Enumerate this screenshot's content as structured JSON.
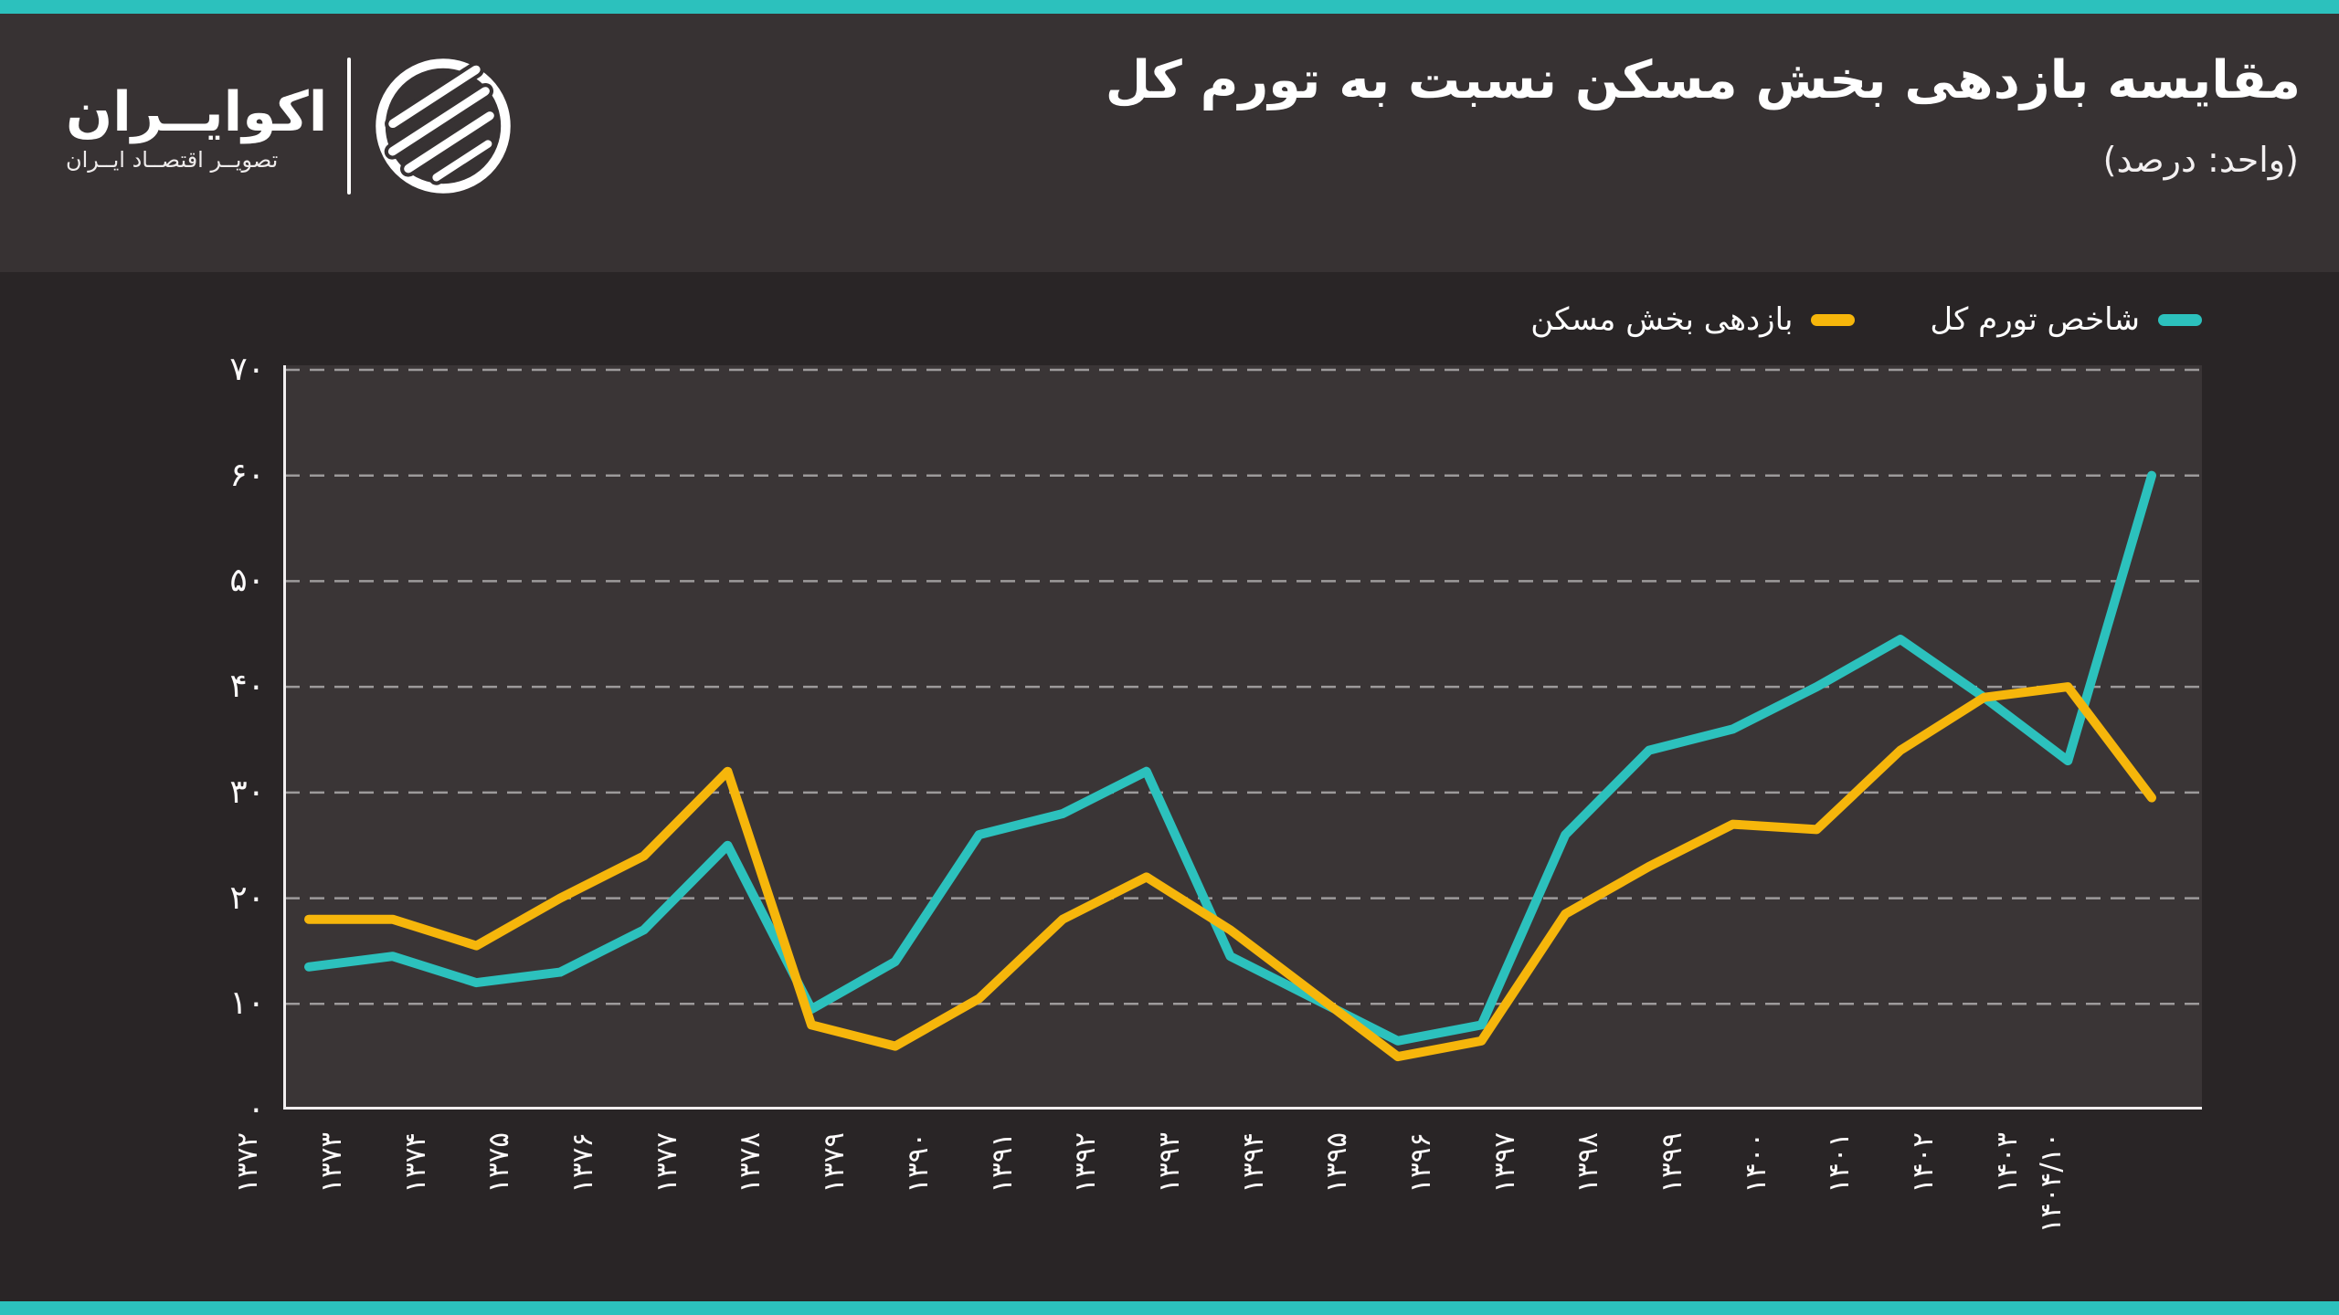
{
  "page": {
    "accent_color": "#2CC1BD",
    "background": "#292526",
    "header_background": "#373233",
    "plot_background": "#3A3536"
  },
  "header": {
    "title": "مقایسه بازدهی بخش مسکن نسبت به تورم کل",
    "subtitle": "(واحد: درصد)",
    "logo": {
      "name": "اکوایــران",
      "tagline": "تصویــر اقتصــاد ایــران",
      "emblem": "ecoiran-striped-circle-logo"
    }
  },
  "chart_data": {
    "type": "line",
    "title": "مقایسه بازدهی بخش مسکن نسبت به تورم کل",
    "unit_label": "(واحد: درصد)",
    "legend_position": "top-right",
    "grid": "horizontal-dashed",
    "ylim": [
      0,
      70
    ],
    "y_ticks": [
      {
        "label": "۷۰",
        "value": 70
      },
      {
        "label": "۶۰",
        "value": 60
      },
      {
        "label": "۵۰",
        "value": 50
      },
      {
        "label": "۴۰",
        "value": 40
      },
      {
        "label": "۳۰",
        "value": 30
      },
      {
        "label": "۲۰",
        "value": 20
      },
      {
        "label": "۱۰",
        "value": 10
      },
      {
        "label": "۰",
        "value": 0
      }
    ],
    "x_labels": [
      "۱۳۷۲",
      "۱۳۷۳",
      "۱۳۷۴",
      "۱۳۷۵",
      "۱۳۷۶",
      "۱۳۷۷",
      "۱۳۷۸",
      "۱۳۷۹",
      "۱۳۹۰",
      "۱۳۹۱",
      "۱۳۹۲",
      "۱۳۹۳",
      "۱۳۹۴",
      "۱۳۹۵",
      "۱۳۹۶",
      "۱۳۹۷",
      "۱۳۹۸",
      "۱۳۹۹",
      "۱۴۰۰",
      "۱۴۰۱",
      "۱۴۰۲",
      "۱۴۰۳",
      "۱۴۰۴/۱۰"
    ],
    "series": [
      {
        "name": "شاخص تورم کل",
        "color": "#2CC1BD",
        "values": [
          13.5,
          14.5,
          12,
          13,
          17,
          25,
          9.5,
          14,
          26,
          28,
          32,
          14.5,
          10.5,
          6.5,
          8,
          26,
          34,
          36,
          40,
          44.5,
          39,
          33,
          60
        ]
      },
      {
        "name": "بازدهی بخش مسکن",
        "color": "#F6B60B",
        "values": [
          18,
          18,
          15.5,
          20,
          24,
          32,
          8,
          6,
          10.5,
          18,
          22,
          17,
          11,
          5,
          6.5,
          18.5,
          23,
          27,
          26.5,
          34,
          39,
          40,
          29.5
        ]
      }
    ]
  }
}
